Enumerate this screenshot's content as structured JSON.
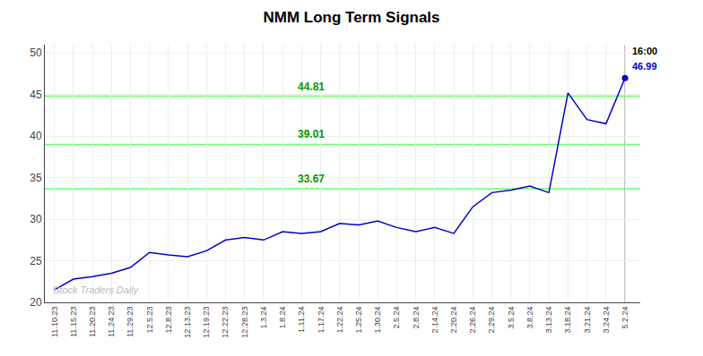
{
  "chart_data": {
    "type": "line",
    "title": "NMM Long Term Signals",
    "categories": [
      "11.10.23",
      "11.15.23",
      "11.20.23",
      "11.24.23",
      "11.29.23",
      "12.5.23",
      "12.8.23",
      "12.13.23",
      "12.19.23",
      "12.22.23",
      "12.28.23",
      "1.3.24",
      "1.8.24",
      "1.11.24",
      "1.17.24",
      "1.22.24",
      "1.25.24",
      "1.30.24",
      "2.5.24",
      "2.8.24",
      "2.14.24",
      "2.20.24",
      "2.26.24",
      "2.29.24",
      "3.5.24",
      "3.8.24",
      "3.13.24",
      "3.18.24",
      "3.21.24",
      "3.24.24",
      "5.2.24"
    ],
    "values": [
      21.5,
      22.8,
      23.1,
      23.5,
      24.2,
      26.0,
      25.7,
      25.5,
      26.2,
      27.5,
      27.8,
      27.5,
      28.5,
      28.3,
      28.5,
      29.5,
      29.3,
      29.8,
      29.0,
      28.5,
      29.0,
      28.3,
      31.5,
      33.2,
      33.5,
      34.0,
      33.2,
      45.2,
      42.0,
      41.5,
      46.99
    ],
    "color": "#0000cc",
    "ylim": [
      20,
      51
    ],
    "yticks": [
      20,
      25,
      30,
      35,
      40,
      45,
      50
    ],
    "grid": true,
    "hlines": [
      {
        "value": 44.81,
        "label": "44.81",
        "color": "#66ff66",
        "label_color": "#009900"
      },
      {
        "value": 39.01,
        "label": "39.01",
        "color": "#66ff66",
        "label_color": "#009900"
      },
      {
        "value": 33.67,
        "label": "33.67",
        "color": "#66ff66",
        "label_color": "#009900"
      }
    ],
    "annotations": [
      {
        "text": "16:00",
        "color": "#000000"
      },
      {
        "text": "46.99",
        "color": "#0000cc"
      }
    ],
    "watermark": {
      "text": "Stock Traders Daily",
      "color": "#bbbbbb"
    }
  }
}
